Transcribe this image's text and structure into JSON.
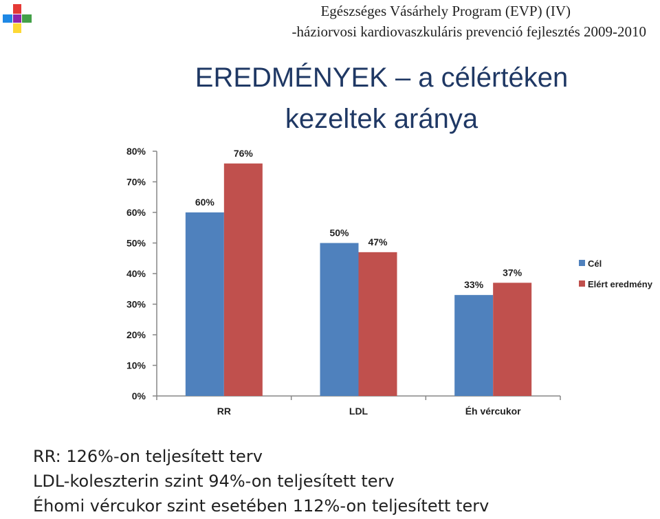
{
  "header": {
    "line1": "Egészséges Vásárhely Program (EVP) (IV)",
    "line2": "-háziorvosi kardiovaszkuláris prevenció fejlesztés 2009-2010"
  },
  "title": {
    "line1": "EREDMÉNYEK – a célértéken",
    "line2": "kezeltek aránya"
  },
  "chart_data": {
    "type": "bar",
    "categories": [
      "RR",
      "LDL",
      "Éh vércukor"
    ],
    "series": [
      {
        "name": "Cél",
        "values": [
          60,
          50,
          33
        ],
        "labels": [
          "60%",
          "50%",
          "33%"
        ],
        "color": "#4f81bd"
      },
      {
        "name": "Elért eredmény",
        "values": [
          76,
          47,
          37
        ],
        "labels": [
          "76%",
          "47%",
          "37%"
        ],
        "color": "#c0504d"
      }
    ],
    "yticks": [
      "0%",
      "10%",
      "20%",
      "30%",
      "40%",
      "50%",
      "60%",
      "70%",
      "80%"
    ],
    "ylim": [
      0,
      80
    ],
    "grid": false,
    "legend": "right"
  },
  "notes": [
    "RR: 126%-on teljesített terv",
    "LDL-koleszterin szint 94%-on teljesített terv",
    "Éhomi vércukor szint esetében 112%-on teljesített terv"
  ],
  "logo": {
    "icon": "hands-logo-icon",
    "colors": [
      "#e53935",
      "#1e88e5",
      "#43a047",
      "#fdd835"
    ]
  }
}
